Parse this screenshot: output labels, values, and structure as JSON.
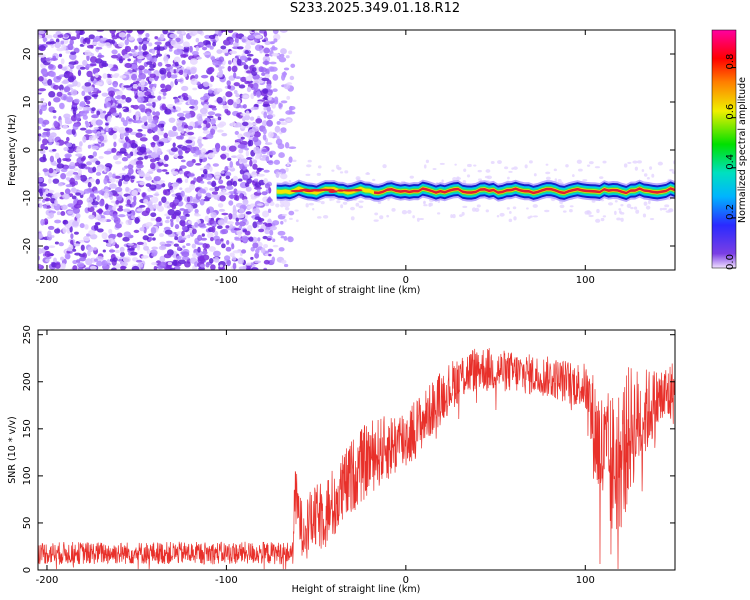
{
  "title": "S233.2025.349.01.18.R12",
  "colors": {
    "snr_line": "#e8302a",
    "scatter": "#7a2fe0",
    "ridge_core": "#e02030",
    "ridge_mid": "#f2e600",
    "ridge_edge": "#00c8e6",
    "ridge_outer": "#1020c8"
  },
  "chart_data": [
    {
      "type": "heatmap",
      "xlabel": "Height of straight line (km)",
      "ylabel": "Frequency (Hz)",
      "xlim": [
        -205,
        150
      ],
      "ylim": [
        -25,
        25
      ],
      "xticks": [
        -200,
        -100,
        0,
        100
      ],
      "yticks": [
        -20,
        -10,
        0,
        10,
        20
      ],
      "noise_region_x": [
        -205,
        -63
      ],
      "ridge": {
        "x_start": -72,
        "x_end": 150,
        "frequency": -8.5,
        "peak_color_from_x": -20
      },
      "colorbar": {
        "label": "Normalized spectral amplitude",
        "range": [
          0.0,
          0.95
        ],
        "ticks": [
          0.0,
          0.2,
          0.4,
          0.6,
          0.8
        ]
      },
      "grid": false
    },
    {
      "type": "line",
      "xlabel": "Height of straight line (km)",
      "ylabel": "SNR (10 * v/v)",
      "xlim": [
        -205,
        150
      ],
      "ylim": [
        0,
        255
      ],
      "xticks": [
        -200,
        -100,
        0,
        100
      ],
      "yticks": [
        0,
        50,
        100,
        150,
        200,
        250
      ],
      "grid": false,
      "series": [
        {
          "profile_x": [
            -205,
            -63,
            -62,
            -58,
            -50,
            -40,
            -30,
            -20,
            -10,
            0,
            10,
            20,
            30,
            40,
            60,
            80,
            100,
            105,
            110,
            115,
            120,
            125,
            130,
            140,
            150
          ],
          "profile_y": [
            18,
            18,
            80,
            45,
            55,
            70,
            100,
            120,
            130,
            140,
            160,
            185,
            205,
            215,
            210,
            205,
            195,
            150,
            120,
            110,
            120,
            150,
            160,
            180,
            190
          ],
          "noise_amplitude": [
            12,
            12,
            35,
            30,
            35,
            40,
            40,
            40,
            35,
            35,
            30,
            28,
            26,
            24,
            22,
            22,
            25,
            60,
            70,
            80,
            80,
            70,
            55,
            35,
            35
          ]
        }
      ]
    }
  ]
}
